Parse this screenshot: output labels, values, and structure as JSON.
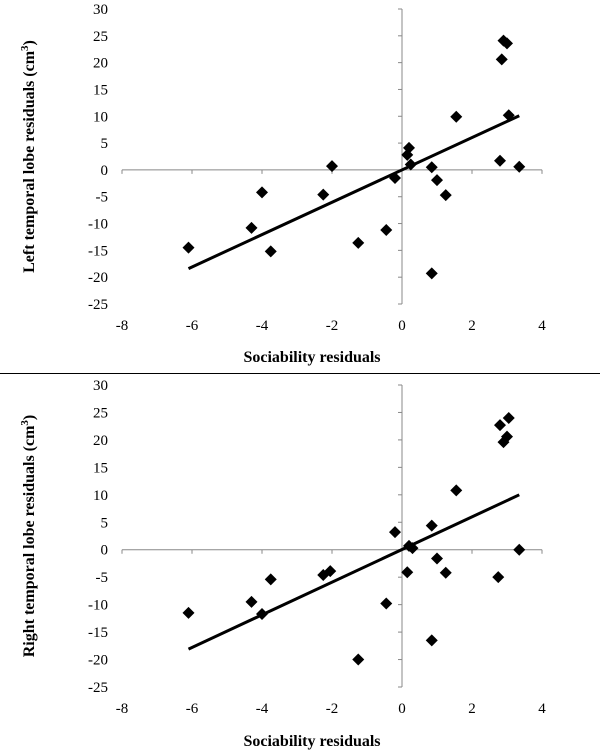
{
  "chart_data": [
    {
      "type": "scatter",
      "xlabel": "Sociability residuals",
      "ylabel": "Left temporal lobe residuals (cm",
      "ylabel_superscript": "3",
      "ylabel_suffix": ")",
      "xlim": [
        -8,
        4
      ],
      "ylim": [
        -25,
        30
      ],
      "x_ticks": [
        -8,
        -6,
        -4,
        -2,
        0,
        2,
        4
      ],
      "y_ticks": [
        -25,
        -20,
        -15,
        -10,
        -5,
        0,
        5,
        10,
        15,
        20,
        25,
        30
      ],
      "grid": false,
      "marker": "diamond",
      "points": [
        {
          "x": -6.1,
          "y": -14.5
        },
        {
          "x": -4.3,
          "y": -10.8
        },
        {
          "x": -4.0,
          "y": -4.2
        },
        {
          "x": -3.75,
          "y": -15.2
        },
        {
          "x": -2.25,
          "y": -4.6
        },
        {
          "x": -2.0,
          "y": 0.7
        },
        {
          "x": -1.25,
          "y": -13.6
        },
        {
          "x": -0.45,
          "y": -11.2
        },
        {
          "x": -0.2,
          "y": -1.5
        },
        {
          "x": 0.15,
          "y": 2.8
        },
        {
          "x": 0.2,
          "y": 4.1
        },
        {
          "x": 0.25,
          "y": 1.0
        },
        {
          "x": 0.85,
          "y": 0.5
        },
        {
          "x": 0.85,
          "y": -19.3
        },
        {
          "x": 1.0,
          "y": -1.9
        },
        {
          "x": 1.25,
          "y": -4.7
        },
        {
          "x": 1.55,
          "y": 9.9
        },
        {
          "x": 2.8,
          "y": 1.7
        },
        {
          "x": 2.85,
          "y": 20.6
        },
        {
          "x": 2.9,
          "y": 24.1
        },
        {
          "x": 3.0,
          "y": 23.6
        },
        {
          "x": 3.05,
          "y": 10.2
        },
        {
          "x": 3.35,
          "y": 0.6
        }
      ],
      "trendline": {
        "x": [
          -6.1,
          3.35
        ],
        "y": [
          -18.4,
          10.1
        ]
      }
    },
    {
      "type": "scatter",
      "xlabel": "Sociability residuals",
      "ylabel": "Right temporal lobe residuals (cm",
      "ylabel_superscript": "3",
      "ylabel_suffix": ")",
      "xlim": [
        -8,
        4
      ],
      "ylim": [
        -25,
        30
      ],
      "x_ticks": [
        -8,
        -6,
        -4,
        -2,
        0,
        2,
        4
      ],
      "y_ticks": [
        -25,
        -20,
        -15,
        -10,
        -5,
        0,
        5,
        10,
        15,
        20,
        25,
        30
      ],
      "grid": false,
      "marker": "diamond",
      "points": [
        {
          "x": -6.1,
          "y": -11.5
        },
        {
          "x": -4.3,
          "y": -9.5
        },
        {
          "x": -4.0,
          "y": -11.7
        },
        {
          "x": -3.75,
          "y": -5.4
        },
        {
          "x": -2.25,
          "y": -4.6
        },
        {
          "x": -2.05,
          "y": -3.9
        },
        {
          "x": -1.25,
          "y": -20.0
        },
        {
          "x": -0.45,
          "y": -9.8
        },
        {
          "x": -0.2,
          "y": 3.2
        },
        {
          "x": 0.15,
          "y": -4.1
        },
        {
          "x": 0.2,
          "y": 0.7
        },
        {
          "x": 0.3,
          "y": 0.3
        },
        {
          "x": 0.85,
          "y": 4.4
        },
        {
          "x": 0.85,
          "y": -16.5
        },
        {
          "x": 1.0,
          "y": -1.6
        },
        {
          "x": 1.25,
          "y": -4.2
        },
        {
          "x": 1.55,
          "y": 10.8
        },
        {
          "x": 2.75,
          "y": -5.0
        },
        {
          "x": 2.8,
          "y": 22.7
        },
        {
          "x": 2.9,
          "y": 19.6
        },
        {
          "x": 3.0,
          "y": 20.6
        },
        {
          "x": 3.05,
          "y": 24.0
        },
        {
          "x": 3.35,
          "y": 0.0
        }
      ],
      "trendline": {
        "x": [
          -6.1,
          3.35
        ],
        "y": [
          -18.1,
          10.0
        ]
      }
    }
  ]
}
